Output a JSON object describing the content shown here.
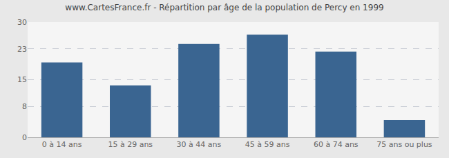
{
  "chart_data": {
    "type": "bar",
    "title": "www.CartesFrance.fr - Répartition par âge de la population de Percy en 1999",
    "categories": [
      "0 à 14 ans",
      "15 à 29 ans",
      "30 à 44 ans",
      "45 à 59 ans",
      "60 à 74 ans",
      "75 ans ou plus"
    ],
    "values": [
      19.5,
      13.5,
      24.3,
      26.7,
      22.3,
      4.5
    ],
    "color": "#3a6591",
    "ylim": [
      0,
      30
    ],
    "yticks": [
      0,
      8,
      15,
      23,
      30
    ],
    "grid": true
  }
}
